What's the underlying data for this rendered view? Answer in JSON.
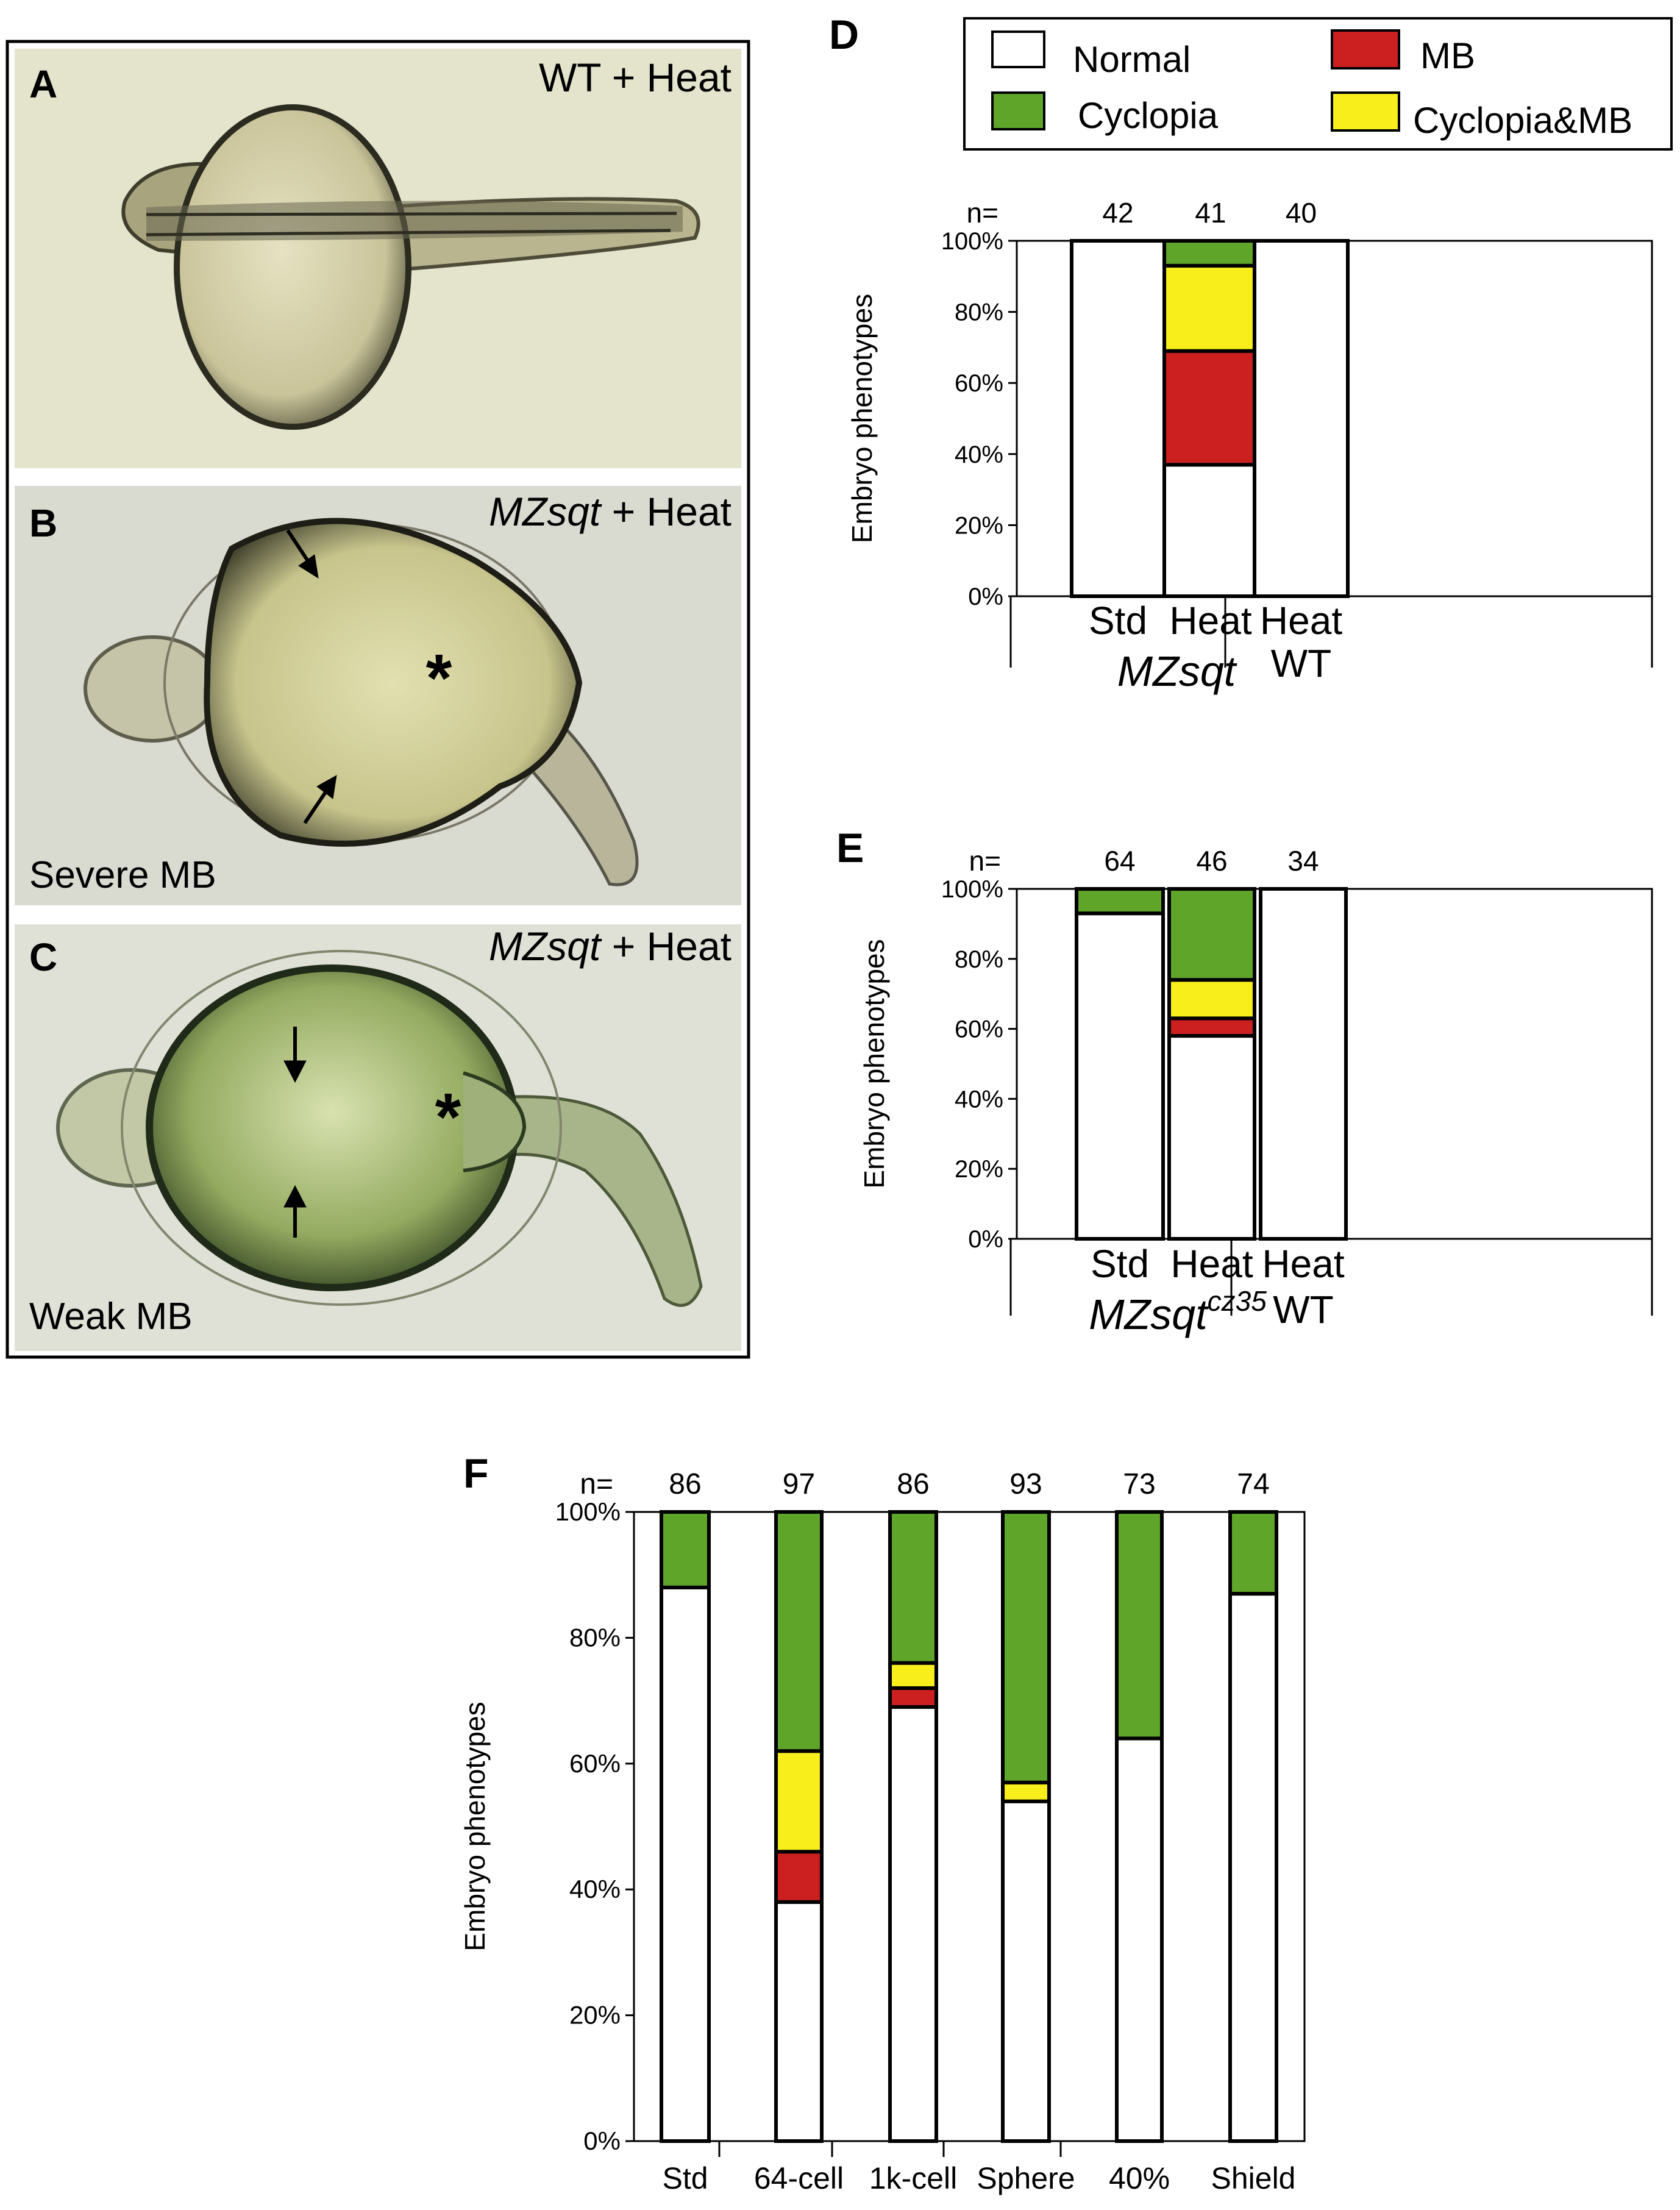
{
  "panels_photo": [
    {
      "letter": "A",
      "title_pre": "",
      "title_italic": "",
      "title_text": "WT + Heat",
      "caption": ""
    },
    {
      "letter": "B",
      "title_pre": "",
      "title_italic": "MZsqt",
      "title_text": " + Heat",
      "caption": "Severe MB"
    },
    {
      "letter": "C",
      "title_pre": "",
      "title_italic": "MZsqt",
      "title_text": " + Heat",
      "caption": "Weak MB"
    }
  ],
  "legend": {
    "items": [
      {
        "label": "Normal",
        "color": "#ffffff"
      },
      {
        "label": "MB",
        "color": "#cc2020"
      },
      {
        "label": "Cyclopia",
        "color": "#5fa52a"
      },
      {
        "label": "Cyclopia&MB",
        "color": "#f7ee1c"
      }
    ]
  },
  "colors": {
    "normal": "#ffffff",
    "mb": "#cc2020",
    "cyclopia": "#5fa52a",
    "cyclopia_mb": "#f7ee1c"
  },
  "chart_data": [
    {
      "panel": "D",
      "type": "bar",
      "stacked": true,
      "ylabel": "Embryo phenotypes",
      "yticks": [
        "0%",
        "20%",
        "40%",
        "60%",
        "80%",
        "100%"
      ],
      "ylim": [
        0,
        100
      ],
      "n_label": "n=",
      "categories": [
        "Std",
        "Heat",
        "Heat WT"
      ],
      "n": [
        "42",
        "41",
        "40"
      ],
      "xlabels": [
        "Std",
        "Heat",
        "Heat"
      ],
      "xlabels2": [
        "",
        "",
        "WT"
      ],
      "group_label": "MZsqt",
      "group_sup": "",
      "series": [
        {
          "name": "Normal",
          "key": "normal",
          "values": [
            100,
            37,
            100
          ]
        },
        {
          "name": "MB",
          "key": "mb",
          "values": [
            0,
            32,
            0
          ]
        },
        {
          "name": "Cyclopia&MB",
          "key": "cyclopia_mb",
          "values": [
            0,
            24,
            0
          ]
        },
        {
          "name": "Cyclopia",
          "key": "cyclopia",
          "values": [
            0,
            7,
            0
          ]
        }
      ]
    },
    {
      "panel": "E",
      "type": "bar",
      "stacked": true,
      "ylabel": "Embryo phenotypes",
      "yticks": [
        "0%",
        "20%",
        "40%",
        "60%",
        "80%",
        "100%"
      ],
      "ylim": [
        0,
        100
      ],
      "n_label": "n=",
      "categories": [
        "Std",
        "Heat",
        "Heat WT"
      ],
      "n": [
        "64",
        "46",
        "34"
      ],
      "xlabels": [
        "Std",
        "Heat",
        "Heat"
      ],
      "xlabels2": [
        "",
        "",
        "WT"
      ],
      "group_label": "MZsqt",
      "group_sup": "cz35",
      "series": [
        {
          "name": "Normal",
          "key": "normal",
          "values": [
            93,
            58,
            100
          ]
        },
        {
          "name": "MB",
          "key": "mb",
          "values": [
            0,
            5,
            0
          ]
        },
        {
          "name": "Cyclopia&MB",
          "key": "cyclopia_mb",
          "values": [
            0,
            11,
            0
          ]
        },
        {
          "name": "Cyclopia",
          "key": "cyclopia",
          "values": [
            7,
            26,
            0
          ]
        }
      ]
    },
    {
      "panel": "F",
      "type": "bar",
      "stacked": true,
      "ylabel": "Embryo phenotypes",
      "yticks": [
        "0%",
        "20%",
        "40%",
        "60%",
        "80%",
        "100%"
      ],
      "ylim": [
        0,
        100
      ],
      "n_label": "n=",
      "categories": [
        "Std",
        "64-cell",
        "1k-cell",
        "Sphere",
        "40%",
        "Shield"
      ],
      "n": [
        "86",
        "97",
        "86",
        "93",
        "73",
        "74"
      ],
      "xlabels": [
        "Std",
        "64-cell",
        "1k-cell",
        "Sphere",
        "40%",
        "Shield"
      ],
      "xlabels2": [
        "",
        "",
        "",
        "",
        "",
        ""
      ],
      "group_label": "",
      "group_sup": "",
      "series": [
        {
          "name": "Normal",
          "key": "normal",
          "values": [
            88,
            38,
            69,
            54,
            64,
            87
          ]
        },
        {
          "name": "MB",
          "key": "mb",
          "values": [
            0,
            8,
            3,
            0,
            0,
            0
          ]
        },
        {
          "name": "Cyclopia&MB",
          "key": "cyclopia_mb",
          "values": [
            0,
            16,
            4,
            3,
            0,
            0
          ]
        },
        {
          "name": "Cyclopia",
          "key": "cyclopia",
          "values": [
            12,
            38,
            24,
            43,
            36,
            13
          ]
        }
      ]
    }
  ]
}
